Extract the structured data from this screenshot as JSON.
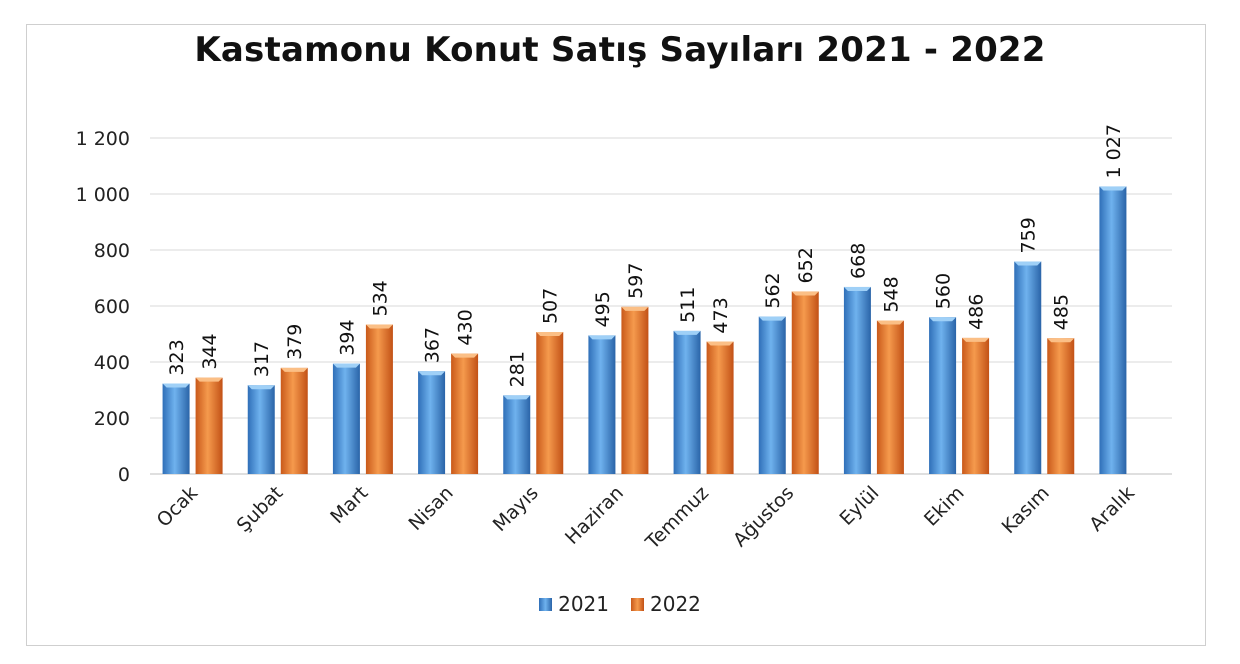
{
  "chart_data": {
    "type": "bar",
    "title": "Kastamonu Konut Satış Sayıları 2021 - 2022",
    "categories": [
      "Ocak",
      "Şubat",
      "Mart",
      "Nisan",
      "Mayıs",
      "Haziran",
      "Temmuz",
      "Ağustos",
      "Eylül",
      "Ekim",
      "Kasım",
      "Aralık"
    ],
    "series": [
      {
        "name": "2021",
        "color": "#4a90d9",
        "values": [
          323,
          317,
          394,
          367,
          281,
          495,
          511,
          562,
          668,
          560,
          759,
          1027
        ],
        "labels": [
          "323",
          "317",
          "394",
          "367",
          "281",
          "495",
          "511",
          "562",
          "668",
          "560",
          "759",
          "1 027"
        ]
      },
      {
        "name": "2022",
        "color": "#ed7d31",
        "values": [
          344,
          379,
          534,
          430,
          507,
          597,
          473,
          652,
          548,
          486,
          485,
          null
        ],
        "labels": [
          "344",
          "379",
          "534",
          "430",
          "507",
          "597",
          "473",
          "652",
          "548",
          "486",
          "485",
          ""
        ]
      }
    ],
    "yticks": [
      "0",
      "200",
      "400",
      "600",
      "800",
      "1 000",
      "1 200"
    ],
    "ylim": [
      0,
      1200
    ],
    "grid": true,
    "legend_position": "bottom",
    "xlabel": "",
    "ylabel": ""
  }
}
